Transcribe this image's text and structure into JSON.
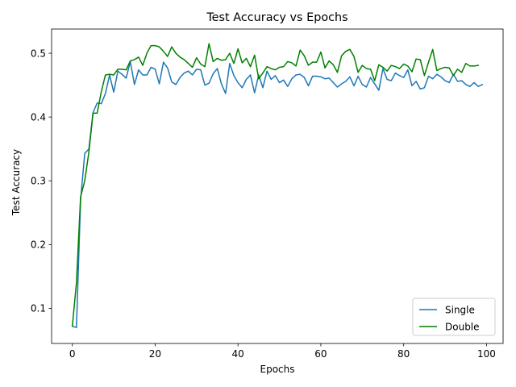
{
  "chart_data": {
    "type": "line",
    "title": "Test Accuracy vs Epochs",
    "xlabel": "Epochs",
    "ylabel": "Test Accuracy",
    "xlim": [
      -5,
      104
    ],
    "ylim": [
      0.045,
      0.538
    ],
    "xticks": [
      0,
      20,
      40,
      60,
      80,
      100
    ],
    "xtick_labels": [
      "0",
      "20",
      "40",
      "60",
      "80",
      "100"
    ],
    "yticks": [
      0.1,
      0.2,
      0.3,
      0.4,
      0.5
    ],
    "ytick_labels": [
      "0.1",
      "0.2",
      "0.3",
      "0.4",
      "0.5"
    ],
    "grid": false,
    "legend_position": "lower-right",
    "series": [
      {
        "name": "Single",
        "color": "#1f77b4",
        "x": [
          0,
          1,
          2,
          3,
          4,
          5,
          6,
          7,
          8,
          9,
          10,
          11,
          12,
          13,
          14,
          15,
          16,
          17,
          18,
          19,
          20,
          21,
          22,
          23,
          24,
          25,
          26,
          27,
          28,
          29,
          30,
          31,
          32,
          33,
          34,
          35,
          36,
          37,
          38,
          39,
          40,
          41,
          42,
          43,
          44,
          45,
          46,
          47,
          48,
          49,
          50,
          51,
          52,
          53,
          54,
          55,
          56,
          57,
          58,
          59,
          60,
          61,
          62,
          63,
          64,
          65,
          66,
          67,
          68,
          69,
          70,
          71,
          72,
          73,
          74,
          75,
          76,
          77,
          78,
          79,
          80,
          81,
          82,
          83,
          84,
          85,
          86,
          87,
          88,
          89,
          90,
          91,
          92,
          93,
          94,
          95,
          96,
          97,
          98,
          99
        ],
        "values": [
          0.072,
          0.07,
          0.27,
          0.343,
          0.35,
          0.407,
          0.422,
          0.421,
          0.437,
          0.466,
          0.439,
          0.472,
          0.467,
          0.461,
          0.487,
          0.451,
          0.474,
          0.466,
          0.466,
          0.478,
          0.475,
          0.452,
          0.486,
          0.477,
          0.455,
          0.451,
          0.462,
          0.469,
          0.472,
          0.466,
          0.475,
          0.474,
          0.45,
          0.453,
          0.468,
          0.476,
          0.452,
          0.437,
          0.484,
          0.465,
          0.454,
          0.446,
          0.459,
          0.466,
          0.438,
          0.466,
          0.446,
          0.472,
          0.459,
          0.465,
          0.454,
          0.458,
          0.448,
          0.46,
          0.466,
          0.467,
          0.462,
          0.449,
          0.464,
          0.464,
          0.463,
          0.46,
          0.461,
          0.454,
          0.447,
          0.452,
          0.456,
          0.463,
          0.449,
          0.464,
          0.451,
          0.447,
          0.462,
          0.452,
          0.442,
          0.476,
          0.459,
          0.457,
          0.469,
          0.465,
          0.462,
          0.474,
          0.449,
          0.456,
          0.444,
          0.446,
          0.464,
          0.46,
          0.467,
          0.463,
          0.457,
          0.454,
          0.467,
          0.456,
          0.457,
          0.451,
          0.448,
          0.454,
          0.448,
          0.451
        ]
      },
      {
        "name": "Double",
        "color": "#008000",
        "x": [
          0,
          1,
          2,
          3,
          4,
          5,
          6,
          7,
          8,
          9,
          10,
          11,
          12,
          13,
          14,
          15,
          16,
          17,
          18,
          19,
          20,
          21,
          22,
          23,
          24,
          25,
          26,
          27,
          28,
          29,
          30,
          31,
          32,
          33,
          34,
          35,
          36,
          37,
          38,
          39,
          40,
          41,
          42,
          43,
          44,
          45,
          46,
          47,
          48,
          49,
          50,
          51,
          52,
          53,
          54,
          55,
          56,
          57,
          58,
          59,
          60,
          61,
          62,
          63,
          64,
          65,
          66,
          67,
          68,
          69,
          70,
          71,
          72,
          73,
          74,
          75,
          76,
          77,
          78,
          79,
          80,
          81,
          82,
          83,
          84,
          85,
          86,
          87,
          88,
          89,
          90,
          91,
          92,
          93,
          94,
          95,
          96,
          97,
          98
        ],
        "values": [
          0.072,
          0.14,
          0.275,
          0.3,
          0.345,
          0.406,
          0.406,
          0.44,
          0.466,
          0.467,
          0.466,
          0.475,
          0.475,
          0.474,
          0.488,
          0.49,
          0.494,
          0.481,
          0.5,
          0.512,
          0.512,
          0.51,
          0.503,
          0.495,
          0.51,
          0.5,
          0.494,
          0.49,
          0.484,
          0.478,
          0.493,
          0.483,
          0.479,
          0.515,
          0.487,
          0.492,
          0.489,
          0.49,
          0.5,
          0.484,
          0.507,
          0.485,
          0.492,
          0.479,
          0.497,
          0.46,
          0.469,
          0.479,
          0.476,
          0.474,
          0.478,
          0.479,
          0.487,
          0.485,
          0.48,
          0.505,
          0.496,
          0.481,
          0.486,
          0.486,
          0.502,
          0.477,
          0.488,
          0.482,
          0.47,
          0.496,
          0.503,
          0.506,
          0.495,
          0.47,
          0.481,
          0.476,
          0.475,
          0.457,
          0.482,
          0.478,
          0.472,
          0.481,
          0.479,
          0.476,
          0.483,
          0.48,
          0.471,
          0.491,
          0.49,
          0.465,
          0.486,
          0.506,
          0.473,
          0.476,
          0.478,
          0.477,
          0.465,
          0.475,
          0.47,
          0.484,
          0.48,
          0.48,
          0.481
        ]
      }
    ]
  }
}
